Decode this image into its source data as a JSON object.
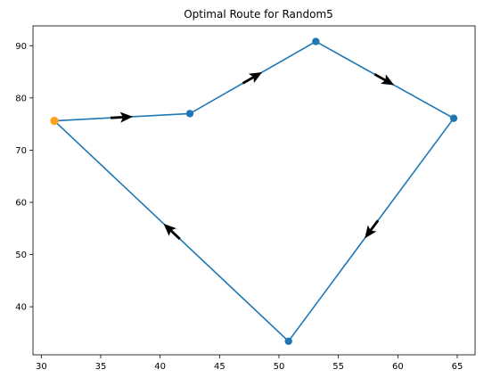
{
  "chart_data": {
    "type": "line",
    "title": "Optimal Route for Random5",
    "xlabel": "",
    "ylabel": "",
    "xlim": [
      29.3,
      66.5
    ],
    "ylim": [
      30.8,
      93.8
    ],
    "xticks": [
      30,
      35,
      40,
      45,
      50,
      55,
      60,
      65
    ],
    "yticks": [
      40,
      50,
      60,
      70,
      80,
      90
    ],
    "grid": false,
    "route": [
      {
        "x": 31.1,
        "y": 75.6
      },
      {
        "x": 42.5,
        "y": 77.0
      },
      {
        "x": 53.1,
        "y": 90.8
      },
      {
        "x": 64.7,
        "y": 76.1
      },
      {
        "x": 50.8,
        "y": 33.4
      },
      {
        "x": 31.1,
        "y": 75.6
      }
    ],
    "start_point": {
      "x": 31.1,
      "y": 75.6
    },
    "colors": {
      "line": "#1f77b4",
      "start": "#ff9f1c",
      "arrow": "#000000"
    }
  }
}
